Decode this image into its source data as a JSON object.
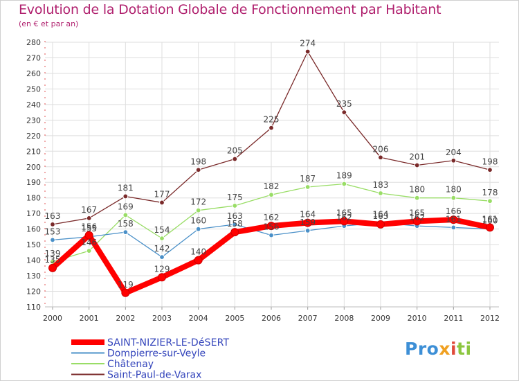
{
  "title": "Evolution de la Dotation Globale de Fonctionnement par Habitant",
  "subtitle": "(en € et par an)",
  "logo": {
    "p1": "Pro",
    "p2": "x",
    "p3": "i",
    "p4": "ti"
  },
  "chart_data": {
    "type": "line",
    "x": [
      "2000",
      "2001",
      "2002",
      "2003",
      "2004",
      "2005",
      "2006",
      "2007",
      "2008",
      "2009",
      "2010",
      "2011",
      "2012"
    ],
    "ylim": [
      110,
      280
    ],
    "yticks": [
      110,
      120,
      130,
      140,
      150,
      160,
      170,
      180,
      190,
      200,
      210,
      220,
      230,
      240,
      250,
      260,
      270,
      280
    ],
    "grid": true,
    "legend": "bottom-left",
    "series": [
      {
        "name": "Saint-Paul-de-Varax",
        "color": "#7a2a2a",
        "values": [
          163,
          167,
          181,
          177,
          198,
          205,
          225,
          274,
          235,
          206,
          201,
          204,
          198
        ]
      },
      {
        "name": "Châtenay",
        "color": "#99dd66",
        "values": [
          139,
          146,
          169,
          154,
          172,
          175,
          182,
          187,
          189,
          183,
          180,
          180,
          178
        ]
      },
      {
        "name": "Dompierre-sur-Veyle",
        "color": "#4a90c8",
        "values": [
          153,
          155,
          158,
          142,
          160,
          163,
          156,
          159,
          162,
          164,
          162,
          161,
          160
        ]
      },
      {
        "name": "SAINT-NIZIER-LE-DéSERT",
        "color": "#ff0000",
        "values": [
          135,
          156,
          119,
          129,
          140,
          158,
          162,
          164,
          165,
          163,
          165,
          166,
          161
        ]
      }
    ]
  }
}
